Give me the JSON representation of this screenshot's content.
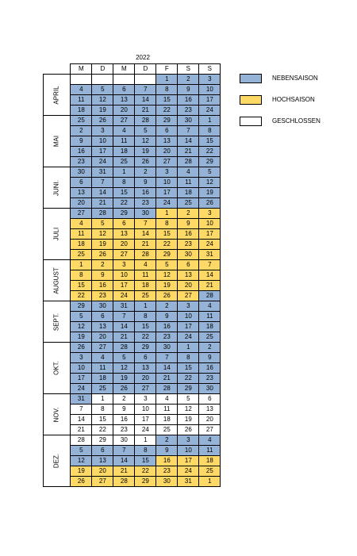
{
  "year": "2022",
  "weekdays": [
    "M",
    "D",
    "M",
    "D",
    "F",
    "S",
    "S"
  ],
  "colors": {
    "nebensaison": "#95b3d7",
    "hochsaison": "#ffd966",
    "geschlossen": "#ffffff"
  },
  "legend": [
    {
      "key": "n",
      "label": "NEBENSAISON"
    },
    {
      "key": "h",
      "label": "HOCHSAISON"
    },
    {
      "key": "g",
      "label": "GESCHLOSSEN"
    }
  ],
  "months": [
    {
      "name": "APRIL",
      "weeks": [
        [
          [
            "",
            ""
          ],
          [
            "",
            ""
          ],
          [
            "",
            ""
          ],
          [
            "",
            ""
          ],
          [
            "1",
            "n"
          ],
          [
            "2",
            "n"
          ],
          [
            "3",
            "n"
          ]
        ],
        [
          [
            "4",
            "n"
          ],
          [
            "5",
            "n"
          ],
          [
            "6",
            "n"
          ],
          [
            "7",
            "n"
          ],
          [
            "8",
            "n"
          ],
          [
            "9",
            "n"
          ],
          [
            "10",
            "n"
          ]
        ],
        [
          [
            "11",
            "n"
          ],
          [
            "12",
            "n"
          ],
          [
            "13",
            "n"
          ],
          [
            "14",
            "n"
          ],
          [
            "15",
            "n"
          ],
          [
            "16",
            "n"
          ],
          [
            "17",
            "n"
          ]
        ],
        [
          [
            "18",
            "n"
          ],
          [
            "19",
            "n"
          ],
          [
            "20",
            "n"
          ],
          [
            "21",
            "n"
          ],
          [
            "22",
            "n"
          ],
          [
            "23",
            "n"
          ],
          [
            "24",
            "n"
          ]
        ]
      ]
    },
    {
      "name": "MAI",
      "weeks": [
        [
          [
            "25",
            "n"
          ],
          [
            "26",
            "n"
          ],
          [
            "27",
            "n"
          ],
          [
            "28",
            "n"
          ],
          [
            "29",
            "n"
          ],
          [
            "30",
            "n"
          ],
          [
            "1",
            "n"
          ]
        ],
        [
          [
            "2",
            "n"
          ],
          [
            "3",
            "n"
          ],
          [
            "4",
            "n"
          ],
          [
            "5",
            "n"
          ],
          [
            "6",
            "n"
          ],
          [
            "7",
            "n"
          ],
          [
            "8",
            "n"
          ]
        ],
        [
          [
            "9",
            "n"
          ],
          [
            "10",
            "n"
          ],
          [
            "11",
            "n"
          ],
          [
            "12",
            "n"
          ],
          [
            "13",
            "n"
          ],
          [
            "14",
            "n"
          ],
          [
            "15",
            "n"
          ]
        ],
        [
          [
            "16",
            "n"
          ],
          [
            "17",
            "n"
          ],
          [
            "18",
            "n"
          ],
          [
            "19",
            "n"
          ],
          [
            "20",
            "n"
          ],
          [
            "21",
            "n"
          ],
          [
            "22",
            "n"
          ]
        ],
        [
          [
            "23",
            "n"
          ],
          [
            "24",
            "n"
          ],
          [
            "25",
            "n"
          ],
          [
            "26",
            "n"
          ],
          [
            "27",
            "n"
          ],
          [
            "28",
            "n"
          ],
          [
            "29",
            "n"
          ]
        ]
      ]
    },
    {
      "name": "JUNI.",
      "weeks": [
        [
          [
            "30",
            "n"
          ],
          [
            "31",
            "n"
          ],
          [
            "1",
            "n"
          ],
          [
            "2",
            "n"
          ],
          [
            "3",
            "n"
          ],
          [
            "4",
            "n"
          ],
          [
            "5",
            "n"
          ]
        ],
        [
          [
            "6",
            "n"
          ],
          [
            "7",
            "n"
          ],
          [
            "8",
            "n"
          ],
          [
            "9",
            "n"
          ],
          [
            "10",
            "n"
          ],
          [
            "11",
            "n"
          ],
          [
            "12",
            "n"
          ]
        ],
        [
          [
            "13",
            "n"
          ],
          [
            "14",
            "n"
          ],
          [
            "15",
            "n"
          ],
          [
            "16",
            "n"
          ],
          [
            "17",
            "n"
          ],
          [
            "18",
            "n"
          ],
          [
            "19",
            "n"
          ]
        ],
        [
          [
            "20",
            "n"
          ],
          [
            "21",
            "n"
          ],
          [
            "22",
            "n"
          ],
          [
            "23",
            "n"
          ],
          [
            "24",
            "n"
          ],
          [
            "25",
            "n"
          ],
          [
            "26",
            "n"
          ]
        ]
      ]
    },
    {
      "name": "JULI",
      "weeks": [
        [
          [
            "27",
            "n"
          ],
          [
            "28",
            "n"
          ],
          [
            "29",
            "n"
          ],
          [
            "30",
            "n"
          ],
          [
            "1",
            "h"
          ],
          [
            "2",
            "h"
          ],
          [
            "3",
            "h"
          ]
        ],
        [
          [
            "4",
            "h"
          ],
          [
            "5",
            "h"
          ],
          [
            "6",
            "h"
          ],
          [
            "7",
            "h"
          ],
          [
            "8",
            "h"
          ],
          [
            "9",
            "h"
          ],
          [
            "10",
            "h"
          ]
        ],
        [
          [
            "11",
            "h"
          ],
          [
            "12",
            "h"
          ],
          [
            "13",
            "h"
          ],
          [
            "14",
            "h"
          ],
          [
            "15",
            "h"
          ],
          [
            "16",
            "h"
          ],
          [
            "17",
            "h"
          ]
        ],
        [
          [
            "18",
            "h"
          ],
          [
            "19",
            "h"
          ],
          [
            "20",
            "h"
          ],
          [
            "21",
            "h"
          ],
          [
            "22",
            "h"
          ],
          [
            "23",
            "h"
          ],
          [
            "24",
            "h"
          ]
        ],
        [
          [
            "25",
            "h"
          ],
          [
            "26",
            "h"
          ],
          [
            "27",
            "h"
          ],
          [
            "28",
            "h"
          ],
          [
            "29",
            "h"
          ],
          [
            "30",
            "h"
          ],
          [
            "31",
            "h"
          ]
        ]
      ]
    },
    {
      "name": "AUGUST",
      "weeks": [
        [
          [
            "1",
            "h"
          ],
          [
            "2",
            "h"
          ],
          [
            "3",
            "h"
          ],
          [
            "4",
            "h"
          ],
          [
            "5",
            "h"
          ],
          [
            "6",
            "h"
          ],
          [
            "7",
            "h"
          ]
        ],
        [
          [
            "8",
            "h"
          ],
          [
            "9",
            "h"
          ],
          [
            "10",
            "h"
          ],
          [
            "11",
            "h"
          ],
          [
            "12",
            "h"
          ],
          [
            "13",
            "h"
          ],
          [
            "14",
            "h"
          ]
        ],
        [
          [
            "15",
            "h"
          ],
          [
            "16",
            "h"
          ],
          [
            "17",
            "h"
          ],
          [
            "18",
            "h"
          ],
          [
            "19",
            "h"
          ],
          [
            "20",
            "h"
          ],
          [
            "21",
            "h"
          ]
        ],
        [
          [
            "22",
            "h"
          ],
          [
            "23",
            "h"
          ],
          [
            "24",
            "h"
          ],
          [
            "25",
            "h"
          ],
          [
            "26",
            "h"
          ],
          [
            "27",
            "h"
          ],
          [
            "28",
            "n"
          ]
        ]
      ]
    },
    {
      "name": "SEPT.",
      "weeks": [
        [
          [
            "29",
            "n"
          ],
          [
            "30",
            "n"
          ],
          [
            "31",
            "n"
          ],
          [
            "1",
            "n"
          ],
          [
            "2",
            "n"
          ],
          [
            "3",
            "n"
          ],
          [
            "4",
            "n"
          ]
        ],
        [
          [
            "5",
            "n"
          ],
          [
            "6",
            "n"
          ],
          [
            "7",
            "n"
          ],
          [
            "8",
            "n"
          ],
          [
            "9",
            "n"
          ],
          [
            "10",
            "n"
          ],
          [
            "11",
            "n"
          ]
        ],
        [
          [
            "12",
            "n"
          ],
          [
            "13",
            "n"
          ],
          [
            "14",
            "n"
          ],
          [
            "15",
            "n"
          ],
          [
            "16",
            "n"
          ],
          [
            "17",
            "n"
          ],
          [
            "18",
            "n"
          ]
        ],
        [
          [
            "19",
            "n"
          ],
          [
            "20",
            "n"
          ],
          [
            "21",
            "n"
          ],
          [
            "22",
            "n"
          ],
          [
            "23",
            "n"
          ],
          [
            "24",
            "n"
          ],
          [
            "25",
            "n"
          ]
        ]
      ]
    },
    {
      "name": "OKT.",
      "weeks": [
        [
          [
            "26",
            "n"
          ],
          [
            "27",
            "n"
          ],
          [
            "28",
            "n"
          ],
          [
            "29",
            "n"
          ],
          [
            "30",
            "n"
          ],
          [
            "1",
            "n"
          ],
          [
            "2",
            "n"
          ]
        ],
        [
          [
            "3",
            "n"
          ],
          [
            "4",
            "n"
          ],
          [
            "5",
            "n"
          ],
          [
            "6",
            "n"
          ],
          [
            "7",
            "n"
          ],
          [
            "8",
            "n"
          ],
          [
            "9",
            "n"
          ]
        ],
        [
          [
            "10",
            "n"
          ],
          [
            "11",
            "n"
          ],
          [
            "12",
            "n"
          ],
          [
            "13",
            "n"
          ],
          [
            "14",
            "n"
          ],
          [
            "15",
            "n"
          ],
          [
            "16",
            "n"
          ]
        ],
        [
          [
            "17",
            "n"
          ],
          [
            "18",
            "n"
          ],
          [
            "19",
            "n"
          ],
          [
            "20",
            "n"
          ],
          [
            "21",
            "n"
          ],
          [
            "22",
            "n"
          ],
          [
            "23",
            "n"
          ]
        ],
        [
          [
            "24",
            "n"
          ],
          [
            "25",
            "n"
          ],
          [
            "26",
            "n"
          ],
          [
            "27",
            "n"
          ],
          [
            "28",
            "n"
          ],
          [
            "29",
            "n"
          ],
          [
            "30",
            "n"
          ]
        ]
      ]
    },
    {
      "name": "NOV.",
      "weeks": [
        [
          [
            "31",
            "n"
          ],
          [
            "1",
            "g"
          ],
          [
            "2",
            "g"
          ],
          [
            "3",
            "g"
          ],
          [
            "4",
            "g"
          ],
          [
            "5",
            "g"
          ],
          [
            "6",
            "g"
          ]
        ],
        [
          [
            "7",
            "g"
          ],
          [
            "8",
            "g"
          ],
          [
            "9",
            "g"
          ],
          [
            "10",
            "g"
          ],
          [
            "11",
            "g"
          ],
          [
            "12",
            "g"
          ],
          [
            "13",
            "g"
          ]
        ],
        [
          [
            "14",
            "g"
          ],
          [
            "15",
            "g"
          ],
          [
            "16",
            "g"
          ],
          [
            "17",
            "g"
          ],
          [
            "18",
            "g"
          ],
          [
            "19",
            "g"
          ],
          [
            "20",
            "g"
          ]
        ],
        [
          [
            "21",
            "g"
          ],
          [
            "22",
            "g"
          ],
          [
            "23",
            "g"
          ],
          [
            "24",
            "g"
          ],
          [
            "25",
            "g"
          ],
          [
            "26",
            "g"
          ],
          [
            "27",
            "g"
          ]
        ]
      ]
    },
    {
      "name": "DEZ.",
      "weeks": [
        [
          [
            "28",
            "g"
          ],
          [
            "29",
            "g"
          ],
          [
            "30",
            "g"
          ],
          [
            "1",
            "g"
          ],
          [
            "2",
            "n"
          ],
          [
            "3",
            "n"
          ],
          [
            "4",
            "n"
          ]
        ],
        [
          [
            "5",
            "n"
          ],
          [
            "6",
            "n"
          ],
          [
            "7",
            "n"
          ],
          [
            "8",
            "n"
          ],
          [
            "9",
            "n"
          ],
          [
            "10",
            "n"
          ],
          [
            "11",
            "n"
          ]
        ],
        [
          [
            "12",
            "n"
          ],
          [
            "13",
            "n"
          ],
          [
            "14",
            "n"
          ],
          [
            "15",
            "n"
          ],
          [
            "16",
            "h"
          ],
          [
            "17",
            "h"
          ],
          [
            "18",
            "h"
          ]
        ],
        [
          [
            "19",
            "h"
          ],
          [
            "20",
            "h"
          ],
          [
            "21",
            "h"
          ],
          [
            "22",
            "h"
          ],
          [
            "23",
            "h"
          ],
          [
            "24",
            "h"
          ],
          [
            "25",
            "h"
          ]
        ],
        [
          [
            "26",
            "h"
          ],
          [
            "27",
            "h"
          ],
          [
            "28",
            "h"
          ],
          [
            "29",
            "h"
          ],
          [
            "30",
            "h"
          ],
          [
            "31",
            "h"
          ],
          [
            "1",
            "h"
          ]
        ]
      ]
    }
  ]
}
